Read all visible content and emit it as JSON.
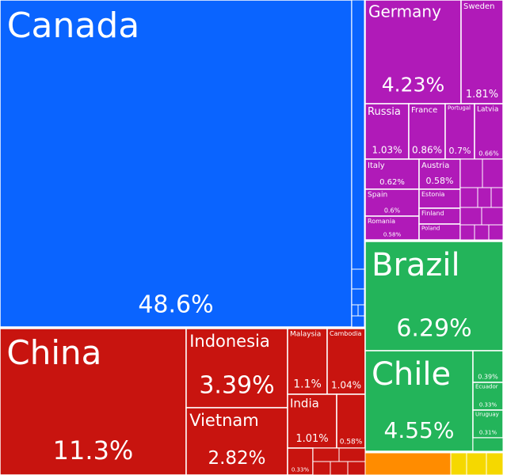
{
  "chart_data": {
    "type": "treemap",
    "categories": [
      "Canada",
      "China",
      "Indonesia",
      "Vietnam",
      "Malaysia",
      "Cambodia",
      "India",
      null,
      null,
      "Germany",
      "Sweden",
      "Russia",
      "France",
      "Portugal",
      "Latvia",
      "Italy",
      "Austria",
      "Spain",
      "Estonia",
      "Romania",
      "Finland",
      "Poland",
      "Brazil",
      "Chile",
      null,
      "Ecuador",
      "Uruguay"
    ],
    "values": [
      48.6,
      11.3,
      3.39,
      2.82,
      1.1,
      1.04,
      1.01,
      0.58,
      0.33,
      4.23,
      1.81,
      1.03,
      0.86,
      0.7,
      0.66,
      0.62,
      0.58,
      0.6,
      0.45,
      0.58,
      0.4,
      0.38,
      6.29,
      4.55,
      0.39,
      0.33,
      0.31
    ],
    "value_labels": [
      "48.6%",
      "11.3%",
      "3.39%",
      "2.82%",
      "1.1%",
      "1.04%",
      "1.01%",
      "0.58%",
      "0.33%",
      "4.23%",
      "1.81%",
      "1.03%",
      "0.86%",
      "0.7%",
      "0.66%",
      "0.62%",
      "0.58%",
      "0.6%",
      null,
      "0.58%",
      null,
      null,
      "6.29%",
      "4.55%",
      "0.39%",
      "0.33%",
      "0.31%"
    ],
    "colors": [
      "#0a64ff",
      "#c8140f",
      "#c8140f",
      "#c8140f",
      "#c8140f",
      "#c8140f",
      "#c8140f",
      "#c8140f",
      "#c8140f",
      "#b01ab8",
      "#b01ab8",
      "#b01ab8",
      "#b01ab8",
      "#b01ab8",
      "#b01ab8",
      "#b01ab8",
      "#b01ab8",
      "#b01ab8",
      "#b01ab8",
      "#b01ab8",
      "#b01ab8",
      "#b01ab8",
      "#23b45a",
      "#23b45a",
      "#23b45a",
      "#23b45a",
      "#23b45a"
    ]
  }
}
